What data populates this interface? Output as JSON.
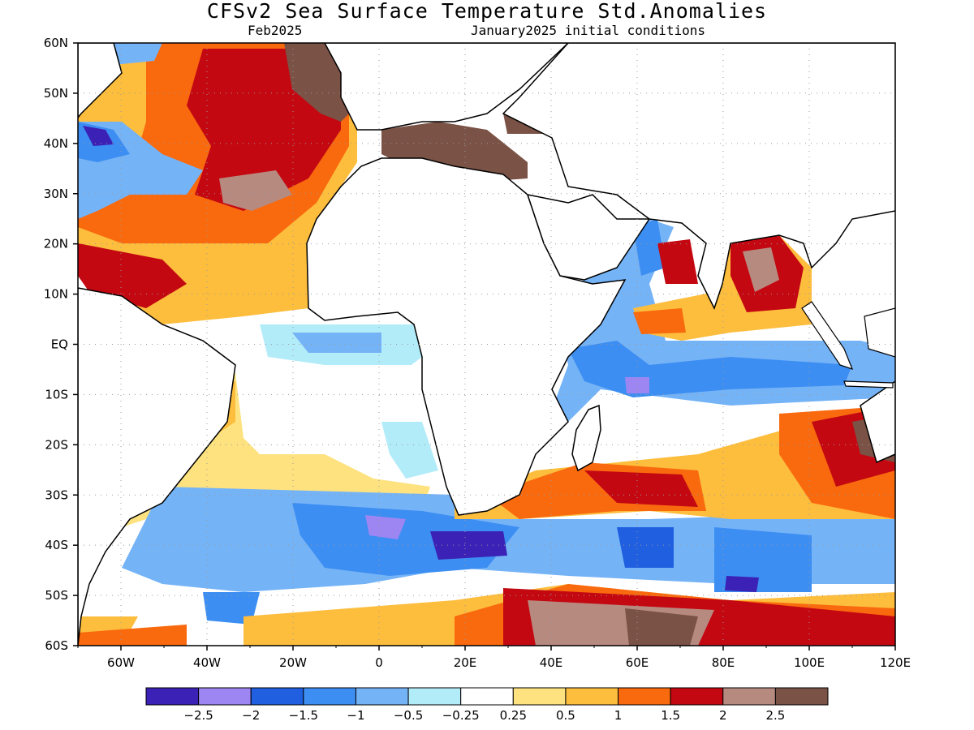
{
  "header": {
    "title": "CFSv2 Sea Surface Temperature Std.Anomalies",
    "subtitle_left": "Feb2025",
    "subtitle_right": "January2025 initial conditions"
  },
  "map": {
    "lon_range": [
      -70,
      120
    ],
    "lat_range": [
      -60,
      60
    ],
    "lat_ticks": [
      "60N",
      "50N",
      "40N",
      "30N",
      "20N",
      "10N",
      "EQ",
      "10S",
      "20S",
      "30S",
      "40S",
      "50S",
      "60S"
    ],
    "lon_ticks": [
      "60W",
      "40W",
      "20W",
      "0",
      "20E",
      "40E",
      "60E",
      "80E",
      "100E",
      "120E"
    ],
    "grid": true,
    "land_color": "#ffffff",
    "coastline_color": "#000000"
  },
  "colorbar": {
    "colors": [
      "#3b21b5",
      "#9e86f2",
      "#1f5fe0",
      "#3c8ef2",
      "#75b3f7",
      "#b3ecf9",
      "#ffffff",
      "#fde27f",
      "#fdbd3d",
      "#f9690e",
      "#c40812",
      "#b78a80",
      "#7a5246"
    ],
    "labels": [
      "-2.5",
      "-2",
      "-1.5",
      "-1",
      "-0.5",
      "-0.25",
      "0.25",
      "0.5",
      "1",
      "1.5",
      "2",
      "2.5"
    ]
  }
}
